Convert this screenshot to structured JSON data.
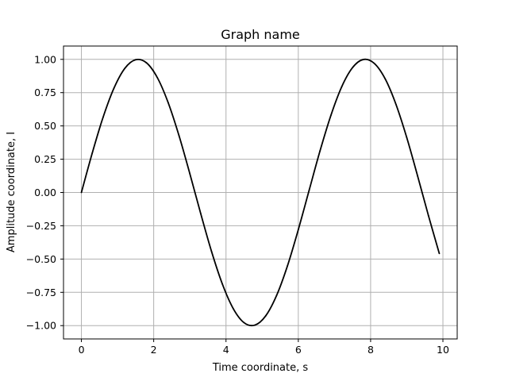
{
  "chart_data": {
    "type": "line",
    "title": "Graph name",
    "xlabel": "Time coordinate, s",
    "ylabel": "Amplitude coordinate, I",
    "xlim": [
      -0.495,
      10.395
    ],
    "ylim": [
      -1.1,
      1.1
    ],
    "xticks": [
      0,
      2,
      4,
      6,
      8,
      10
    ],
    "xtick_labels": [
      "0",
      "2",
      "4",
      "6",
      "8",
      "10"
    ],
    "yticks": [
      -1.0,
      -0.75,
      -0.5,
      -0.25,
      0.0,
      0.25,
      0.5,
      0.75,
      1.0
    ],
    "ytick_labels": [
      "−1.00",
      "−0.75",
      "−0.50",
      "−0.25",
      "0.00",
      "0.25",
      "0.50",
      "0.75",
      "1.00"
    ],
    "grid": true,
    "series": [
      {
        "color": "#000000",
        "x": [
          0.0,
          0.3,
          0.6,
          0.9,
          1.2,
          1.5,
          1.8,
          2.1,
          2.4,
          2.7,
          3.0,
          3.3,
          3.6,
          3.9,
          4.2,
          4.5,
          4.8,
          5.1,
          5.4,
          5.7,
          6.0,
          6.3,
          6.6,
          6.9,
          7.2,
          7.5,
          7.8,
          8.1,
          8.4,
          8.7,
          9.0,
          9.3,
          9.6,
          9.9
        ],
        "y": [
          0.0,
          0.296,
          0.565,
          0.783,
          0.932,
          0.997,
          0.974,
          0.863,
          0.675,
          0.427,
          0.141,
          -0.158,
          -0.443,
          -0.688,
          -0.872,
          -0.978,
          -0.996,
          -0.926,
          -0.773,
          -0.551,
          -0.279,
          0.017,
          0.312,
          0.578,
          0.794,
          0.938,
          0.999,
          0.97,
          0.855,
          0.663,
          0.412,
          0.124,
          -0.174,
          -0.458
        ]
      }
    ]
  }
}
